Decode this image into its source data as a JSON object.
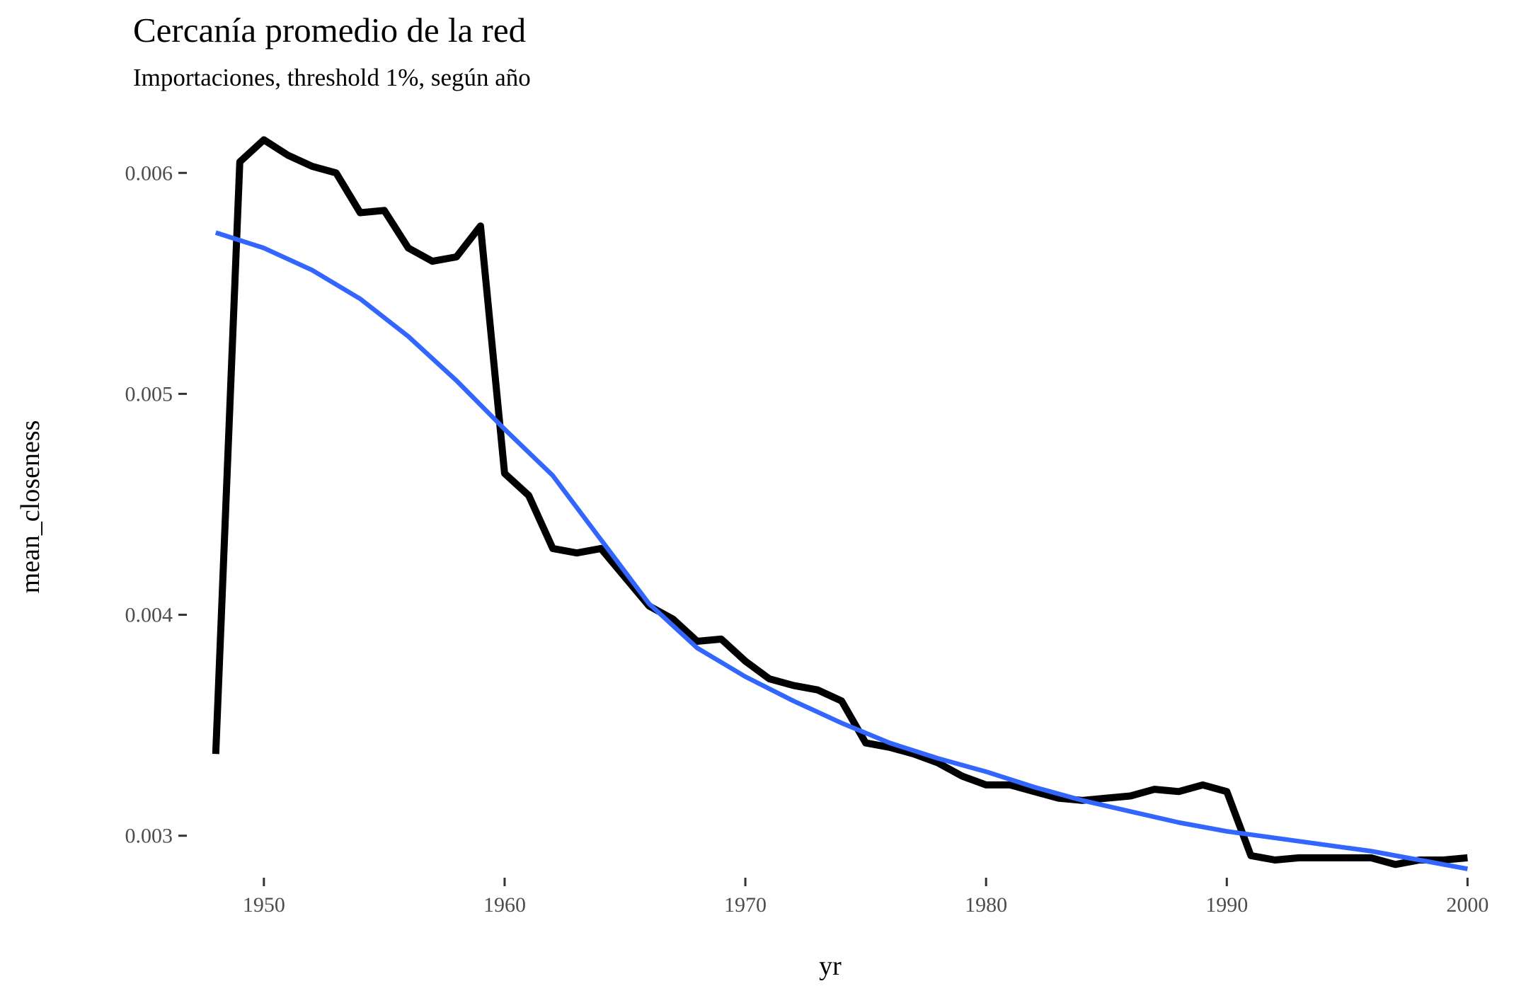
{
  "chart_data": {
    "type": "line",
    "title": "Cercanía promedio de la red",
    "subtitle": "Importaciones, threshold 1%, según año",
    "xlabel": "yr",
    "ylabel": "mean_closeness",
    "xlim": [
      1946.8,
      2000.9
    ],
    "ylim": [
      0.00281,
      0.00627
    ],
    "x_ticks": [
      1950,
      1960,
      1970,
      1980,
      1990,
      2000
    ],
    "x_tick_labels": [
      "1950",
      "1960",
      "1970",
      "1980",
      "1990",
      "2000"
    ],
    "y_ticks": [
      0.003,
      0.004,
      0.005,
      0.006
    ],
    "y_tick_labels": [
      "0.003",
      "0.004",
      "0.005",
      "0.006"
    ],
    "grid": false,
    "series": [
      {
        "color": "#000000",
        "x": [
          1948,
          1949,
          1950,
          1951,
          1952,
          1953,
          1954,
          1955,
          1956,
          1957,
          1958,
          1959,
          1960,
          1961,
          1962,
          1963,
          1964,
          1965,
          1966,
          1967,
          1968,
          1969,
          1970,
          1971,
          1972,
          1973,
          1974,
          1975,
          1976,
          1977,
          1978,
          1979,
          1980,
          1981,
          1982,
          1983,
          1984,
          1985,
          1986,
          1987,
          1988,
          1989,
          1990,
          1991,
          1992,
          1993,
          1994,
          1995,
          1996,
          1997,
          1998,
          1999,
          2000
        ],
        "y": [
          0.00337,
          0.00605,
          0.00615,
          0.00608,
          0.00603,
          0.006,
          0.00582,
          0.00583,
          0.00566,
          0.0056,
          0.00562,
          0.00576,
          0.00464,
          0.00454,
          0.0043,
          0.00428,
          0.0043,
          0.00417,
          0.00404,
          0.00398,
          0.00388,
          0.00389,
          0.00379,
          0.00371,
          0.00368,
          0.00366,
          0.00361,
          0.00342,
          0.0034,
          0.00337,
          0.00333,
          0.00327,
          0.00323,
          0.00323,
          0.0032,
          0.00317,
          0.00316,
          0.00317,
          0.00318,
          0.00321,
          0.0032,
          0.00323,
          0.0032,
          0.00291,
          0.00289,
          0.0029,
          0.0029,
          0.0029,
          0.0029,
          0.00287,
          0.00289,
          0.00289,
          0.0029
        ]
      },
      {
        "color": "#3366ff",
        "x": [
          1948,
          1950,
          1952,
          1954,
          1956,
          1958,
          1960,
          1962,
          1964,
          1966,
          1968,
          1970,
          1972,
          1974,
          1976,
          1978,
          1980,
          1982,
          1984,
          1986,
          1988,
          1990,
          1992,
          1994,
          1996,
          1998,
          2000
        ],
        "y": [
          0.00573,
          0.00566,
          0.00556,
          0.00543,
          0.00526,
          0.00506,
          0.00484,
          0.00463,
          0.00434,
          0.00405,
          0.00385,
          0.00372,
          0.00361,
          0.00351,
          0.00342,
          0.00335,
          0.00329,
          0.00322,
          0.00316,
          0.00311,
          0.00306,
          0.00302,
          0.00299,
          0.00296,
          0.00293,
          0.00289,
          0.00285
        ]
      }
    ]
  }
}
